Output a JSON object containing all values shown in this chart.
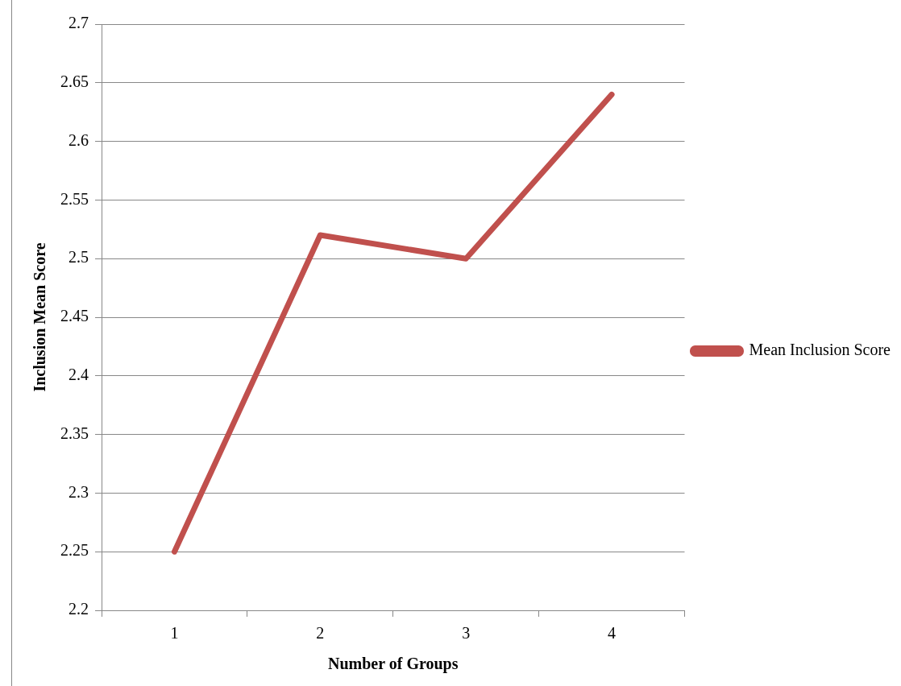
{
  "chart_data": {
    "type": "line",
    "xlabel": "Number of Groups",
    "ylabel": "Inclusion Mean Score",
    "categories": [
      "1",
      "2",
      "3",
      "4"
    ],
    "series": [
      {
        "name": "Mean Inclusion Score",
        "color": "#c0504d",
        "values": [
          2.25,
          2.52,
          2.5,
          2.64
        ]
      }
    ],
    "ylim": [
      2.2,
      2.7
    ],
    "yticks": [
      2.2,
      2.25,
      2.3,
      2.35,
      2.4,
      2.45,
      2.5,
      2.55,
      2.6,
      2.65,
      2.7
    ],
    "grid": "y",
    "legend": "right",
    "marker": "none",
    "line_style": "solid"
  }
}
